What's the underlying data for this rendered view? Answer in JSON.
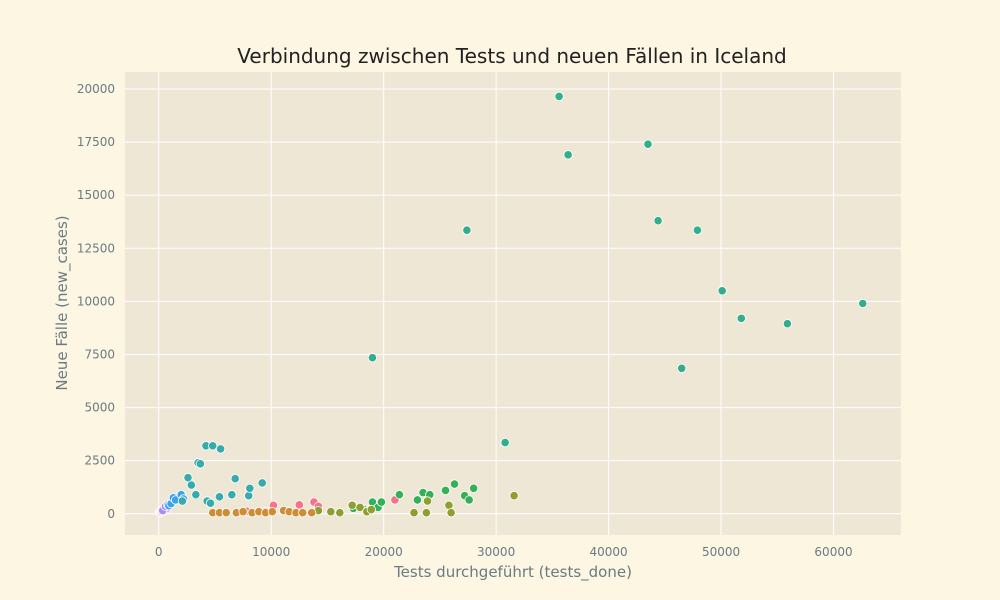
{
  "chart_data": {
    "type": "scatter",
    "title": "Verbindung zwischen Tests und neuen Fällen in Iceland",
    "xlabel": "Tests durchgeführt (tests_done)",
    "ylabel": "Neue Fälle (new_cases)",
    "xlim": [
      -3000,
      66000
    ],
    "ylim": [
      -1000,
      20800
    ],
    "xticks": [
      0,
      10000,
      20000,
      30000,
      40000,
      50000,
      60000
    ],
    "yticks": [
      0,
      2500,
      5000,
      7500,
      10000,
      12500,
      15000,
      17500,
      20000
    ],
    "grid": true,
    "legend": "none",
    "colors": {
      "page_background": "#fdf6e3",
      "plot_background": "#efe7d6",
      "grid": "#ffffff",
      "marker_edge": "#ffffff"
    },
    "series": [
      {
        "color": "#f77189",
        "points": [
          {
            "x": 50,
            "y": 80
          },
          {
            "x": 100,
            "y": 120
          },
          {
            "x": 150,
            "y": 60
          },
          {
            "x": 200,
            "y": 100
          },
          {
            "x": 250,
            "y": 140
          },
          {
            "x": 300,
            "y": 90
          },
          {
            "x": 400,
            "y": 110
          },
          {
            "x": 7800,
            "y": 120
          },
          {
            "x": 9500,
            "y": 100
          },
          {
            "x": 10200,
            "y": 400
          },
          {
            "x": 12500,
            "y": 420
          },
          {
            "x": 13800,
            "y": 550
          },
          {
            "x": 14200,
            "y": 350
          },
          {
            "x": 21000,
            "y": 650
          }
        ]
      },
      {
        "color": "#f9a3c6",
        "points": [
          {
            "x": 300,
            "y": 180
          },
          {
            "x": 500,
            "y": 250
          },
          {
            "x": 600,
            "y": 300
          },
          {
            "x": 700,
            "y": 230
          },
          {
            "x": 900,
            "y": 400
          }
        ]
      },
      {
        "color": "#a48cf4",
        "points": [
          {
            "x": 350,
            "y": 150
          },
          {
            "x": 600,
            "y": 350
          },
          {
            "x": 800,
            "y": 420
          }
        ]
      },
      {
        "color": "#3ba3ec",
        "points": [
          {
            "x": 900,
            "y": 380
          },
          {
            "x": 1100,
            "y": 480
          },
          {
            "x": 1300,
            "y": 750
          },
          {
            "x": 1500,
            "y": 650
          },
          {
            "x": 2000,
            "y": 900
          },
          {
            "x": 2200,
            "y": 700
          }
        ]
      },
      {
        "color": "#35abad",
        "points": [
          {
            "x": 2100,
            "y": 600
          },
          {
            "x": 2600,
            "y": 1700
          },
          {
            "x": 2900,
            "y": 1350
          },
          {
            "x": 3300,
            "y": 900
          },
          {
            "x": 3500,
            "y": 2400
          },
          {
            "x": 3700,
            "y": 2350
          },
          {
            "x": 4200,
            "y": 3200
          },
          {
            "x": 4800,
            "y": 3200
          },
          {
            "x": 5500,
            "y": 3050
          },
          {
            "x": 4300,
            "y": 600
          },
          {
            "x": 4600,
            "y": 500
          },
          {
            "x": 5400,
            "y": 800
          },
          {
            "x": 6500,
            "y": 900
          },
          {
            "x": 6800,
            "y": 1650
          },
          {
            "x": 8000,
            "y": 850
          },
          {
            "x": 8100,
            "y": 1200
          },
          {
            "x": 9200,
            "y": 1450
          }
        ]
      },
      {
        "color": "#30ae8e",
        "points": [
          {
            "x": 35600,
            "y": 19650
          },
          {
            "x": 36400,
            "y": 16900
          },
          {
            "x": 43500,
            "y": 17400
          },
          {
            "x": 44400,
            "y": 13800
          },
          {
            "x": 47900,
            "y": 13350
          },
          {
            "x": 27400,
            "y": 13350
          },
          {
            "x": 50100,
            "y": 10500
          },
          {
            "x": 51800,
            "y": 9200
          },
          {
            "x": 55900,
            "y": 8950
          },
          {
            "x": 62600,
            "y": 9900
          },
          {
            "x": 46500,
            "y": 6850
          },
          {
            "x": 19000,
            "y": 7350
          },
          {
            "x": 30800,
            "y": 3350
          }
        ]
      },
      {
        "color": "#33b058",
        "points": [
          {
            "x": 17300,
            "y": 250
          },
          {
            "x": 18400,
            "y": 200
          },
          {
            "x": 19000,
            "y": 550
          },
          {
            "x": 19500,
            "y": 300
          },
          {
            "x": 19800,
            "y": 550
          },
          {
            "x": 21400,
            "y": 900
          },
          {
            "x": 23000,
            "y": 650
          },
          {
            "x": 23500,
            "y": 1000
          },
          {
            "x": 24100,
            "y": 900
          },
          {
            "x": 25500,
            "y": 1100
          },
          {
            "x": 26300,
            "y": 1400
          },
          {
            "x": 27200,
            "y": 850
          },
          {
            "x": 27600,
            "y": 650
          },
          {
            "x": 28000,
            "y": 1200
          },
          {
            "x": 18600,
            "y": 150
          }
        ]
      },
      {
        "color": "#8e9e31",
        "points": [
          {
            "x": 17200,
            "y": 400
          },
          {
            "x": 17900,
            "y": 300
          },
          {
            "x": 18500,
            "y": 100
          },
          {
            "x": 18900,
            "y": 200
          },
          {
            "x": 22700,
            "y": 50
          },
          {
            "x": 23800,
            "y": 50
          },
          {
            "x": 23900,
            "y": 600
          },
          {
            "x": 25800,
            "y": 400
          },
          {
            "x": 26000,
            "y": 50
          },
          {
            "x": 31600,
            "y": 850
          },
          {
            "x": 14200,
            "y": 150
          },
          {
            "x": 15300,
            "y": 100
          },
          {
            "x": 16100,
            "y": 50
          }
        ]
      },
      {
        "color": "#cf8c32",
        "points": [
          {
            "x": 4800,
            "y": 50
          },
          {
            "x": 5400,
            "y": 50
          },
          {
            "x": 6000,
            "y": 50
          },
          {
            "x": 6900,
            "y": 50
          },
          {
            "x": 7500,
            "y": 100
          },
          {
            "x": 8300,
            "y": 50
          },
          {
            "x": 8900,
            "y": 100
          },
          {
            "x": 9500,
            "y": 50
          },
          {
            "x": 10100,
            "y": 100
          },
          {
            "x": 11100,
            "y": 150
          },
          {
            "x": 11600,
            "y": 100
          },
          {
            "x": 12200,
            "y": 50
          },
          {
            "x": 12800,
            "y": 50
          },
          {
            "x": 13600,
            "y": 50
          }
        ]
      }
    ]
  }
}
